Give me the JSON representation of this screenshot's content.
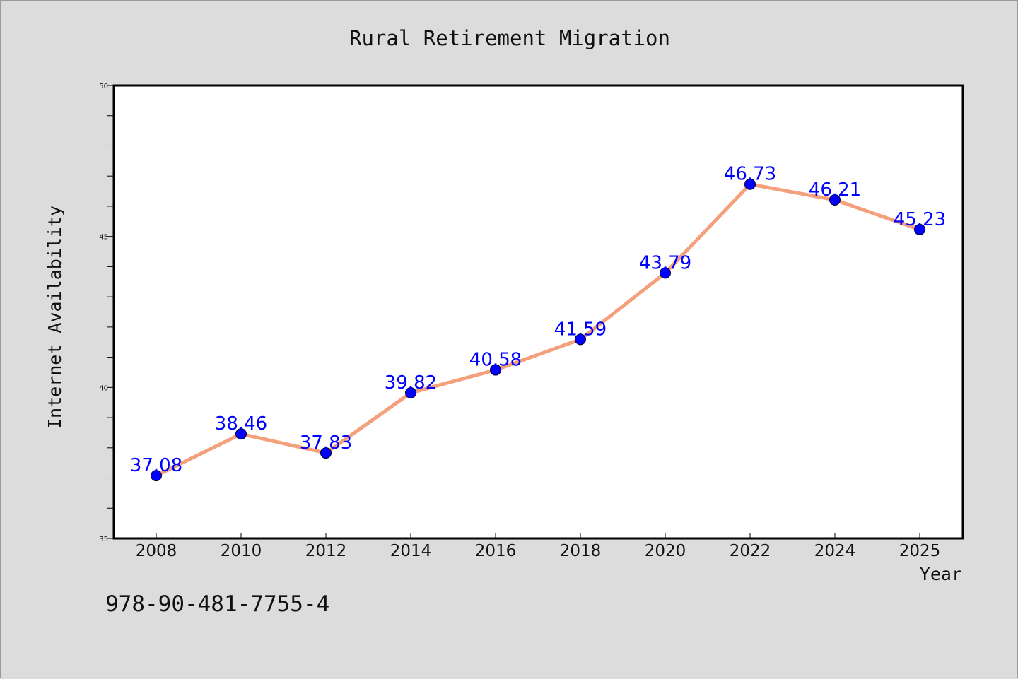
{
  "title": "Rural Retirement Migration",
  "footer_code": "978-90-481-7755-4",
  "colors": {
    "background": "#dcdcdc",
    "plot_background": "#ffffff",
    "line": "#f4a07c",
    "marker": "#0000ff",
    "label": "#0000ff"
  },
  "chart_data": {
    "type": "line",
    "title": "Rural Retirement Migration",
    "xlabel": "Year",
    "ylabel": "Internet Availability",
    "categories": [
      "2008",
      "2010",
      "2012",
      "2014",
      "2016",
      "2018",
      "2020",
      "2022",
      "2024",
      "2025"
    ],
    "series": [
      {
        "values": [
          37.08,
          38.46,
          37.83,
          39.82,
          40.58,
          41.59,
          43.79,
          46.73,
          46.21,
          45.23
        ],
        "labels": [
          "37.08",
          "38.46",
          "37.83",
          "39.82",
          "40.58",
          "41.59",
          "43.79",
          "46.73",
          "46.21",
          "45.23"
        ]
      }
    ],
    "ylim": [
      35,
      50
    ],
    "yticks": [
      "35",
      "40",
      "45",
      "50"
    ],
    "minor_y_step": 1,
    "grid": false,
    "legend": "none"
  }
}
